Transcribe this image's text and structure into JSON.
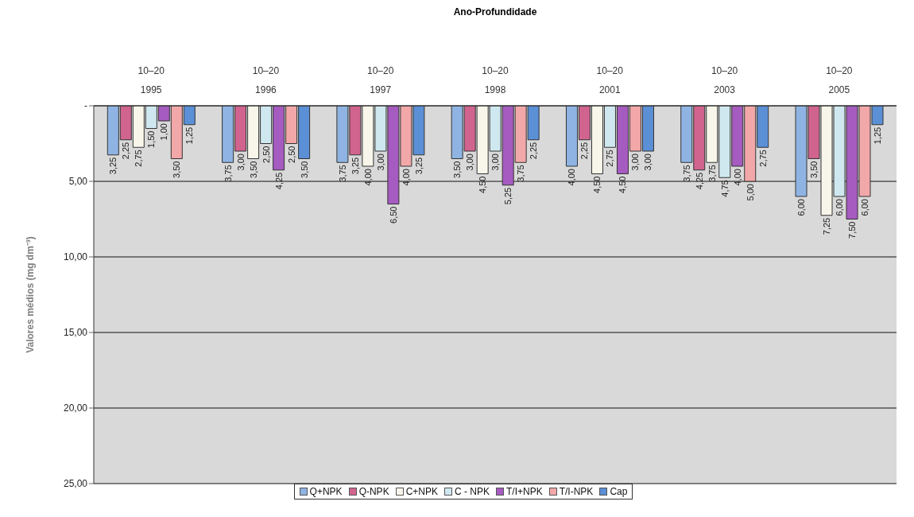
{
  "chart_data": {
    "type": "bar",
    "xlabel": "Ano-Profundidade",
    "ylabel": "Valores médios (mg dm⁻³)",
    "categories": [
      "10–20\n1995",
      "10–20\n1996",
      "10–20\n1997",
      "10–20\n1998",
      "10–20\n2001",
      "10–20\n2003",
      "10–20\n2005"
    ],
    "series": [
      {
        "name": "Q+NPK",
        "color": "#8fb4e3",
        "values": [
          3.25,
          3.75,
          3.75,
          3.5,
          4,
          3.75,
          6
        ],
        "value_labels": [
          "3,25",
          "3,75",
          "3,75",
          "3,50",
          "4,00",
          "3,75",
          "6,00"
        ]
      },
      {
        "name": "Q-NPK",
        "color": "#d0648f",
        "values": [
          2.25,
          3,
          3.25,
          3,
          2.25,
          4.25,
          3.5
        ],
        "value_labels": [
          "2,25",
          "3,00",
          "3,25",
          "3,00",
          "2,25",
          "4,25",
          "3,50"
        ]
      },
      {
        "name": "C+NPK",
        "color": "#f8f6ea",
        "values": [
          2.75,
          3.5,
          4,
          4.5,
          4.5,
          3.75,
          7.25
        ],
        "value_labels": [
          "2,75",
          "3,50",
          "4,00",
          "4,50",
          "4,50",
          "3,75",
          "7,25"
        ]
      },
      {
        "name": "C - NPK",
        "color": "#cfe8f0",
        "values": [
          1.5,
          2.5,
          3,
          3,
          2.75,
          4.75,
          6
        ],
        "value_labels": [
          "1,50",
          "2,50",
          "3,00",
          "3,00",
          "2,75",
          "4,75",
          "6,00"
        ]
      },
      {
        "name": "T/I+NPK",
        "color": "#a65bc0",
        "values": [
          1,
          4.25,
          6.5,
          5.25,
          4.5,
          4,
          7.5
        ],
        "value_labels": [
          "1,00",
          "4,25",
          "6,50",
          "5,25",
          "4,50",
          "4,00",
          "7,50"
        ]
      },
      {
        "name": "T/I-NPK",
        "color": "#f2a7a8",
        "values": [
          3.5,
          2.5,
          4,
          3.75,
          3,
          5,
          6
        ],
        "value_labels": [
          "3,50",
          "2,50",
          "4,00",
          "3,75",
          "3,00",
          "5,00",
          "6,00"
        ]
      },
      {
        "name": "Cap",
        "color": "#5b8fd6",
        "values": [
          1.25,
          3.5,
          3.25,
          2.25,
          3,
          2.75,
          1.25
        ],
        "value_labels": [
          "1,25",
          "3,50",
          "3,25",
          "2,25",
          "3,00",
          "2,75",
          "1,25"
        ]
      }
    ],
    "ylim": [
      25,
      0
    ],
    "yticks": [
      {
        "value": 0,
        "label": "-"
      },
      {
        "value": 5,
        "label": "5,00"
      },
      {
        "value": 10,
        "label": "10,00"
      },
      {
        "value": 15,
        "label": "15,00"
      },
      {
        "value": 20,
        "label": "20,00"
      },
      {
        "value": 25,
        "label": "25,00"
      }
    ],
    "grid": "y",
    "legend": "bottom"
  }
}
